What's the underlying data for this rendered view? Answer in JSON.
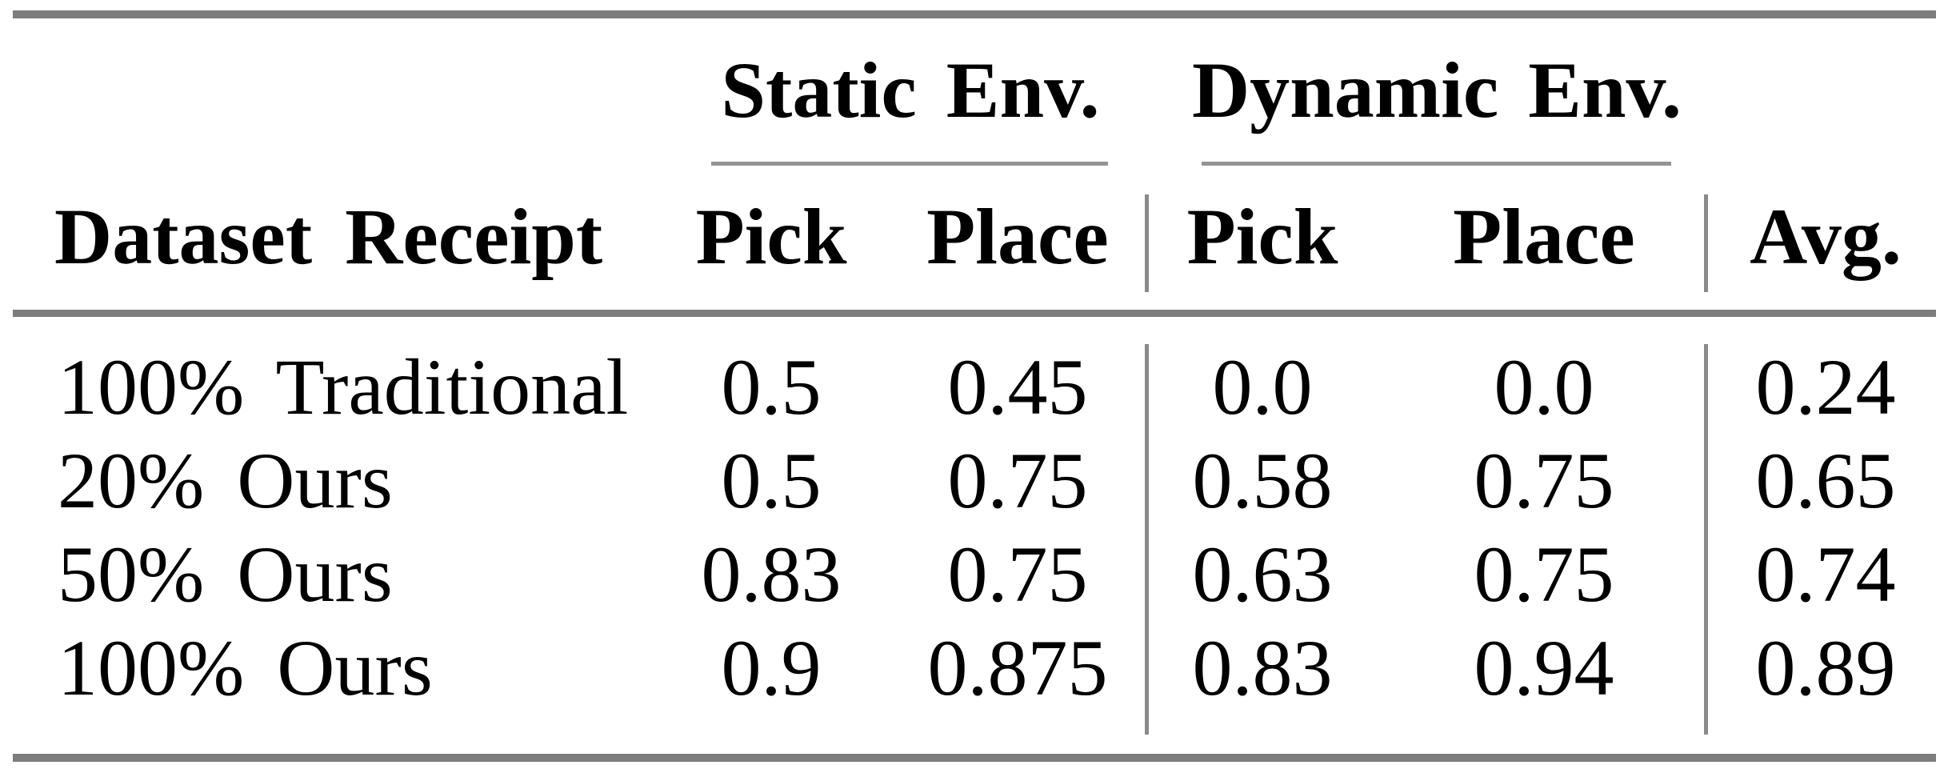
{
  "table": {
    "column_groups": [
      {
        "label": "Static Env."
      },
      {
        "label": "Dynamic Env."
      }
    ],
    "headers": {
      "row_label": "Dataset Receipt",
      "static_pick": "Pick",
      "static_place": "Place",
      "dynamic_pick": "Pick",
      "dynamic_place": "Place",
      "avg": "Avg."
    },
    "rows": [
      {
        "label": "100% Traditional",
        "static_pick": "0.5",
        "static_place": "0.45",
        "dynamic_pick": "0.0",
        "dynamic_place": "0.0",
        "avg": "0.24"
      },
      {
        "label": "20% Ours",
        "static_pick": "0.5",
        "static_place": "0.75",
        "dynamic_pick": "0.58",
        "dynamic_place": "0.75",
        "avg": "0.65"
      },
      {
        "label": "50% Ours",
        "static_pick": "0.83",
        "static_place": "0.75",
        "dynamic_pick": "0.63",
        "dynamic_place": "0.75",
        "avg": "0.74"
      },
      {
        "label": "100% Ours",
        "static_pick": "0.9",
        "static_place": "0.875",
        "dynamic_pick": "0.83",
        "dynamic_place": "0.94",
        "avg": "0.89"
      }
    ]
  },
  "colors": {
    "background": "#ffffff",
    "text": "#000000",
    "thick_rule_gray": "#7d7d7d",
    "thin_rule_gray": "#949494",
    "vertical_rule_gray": "#8a8a8a"
  }
}
